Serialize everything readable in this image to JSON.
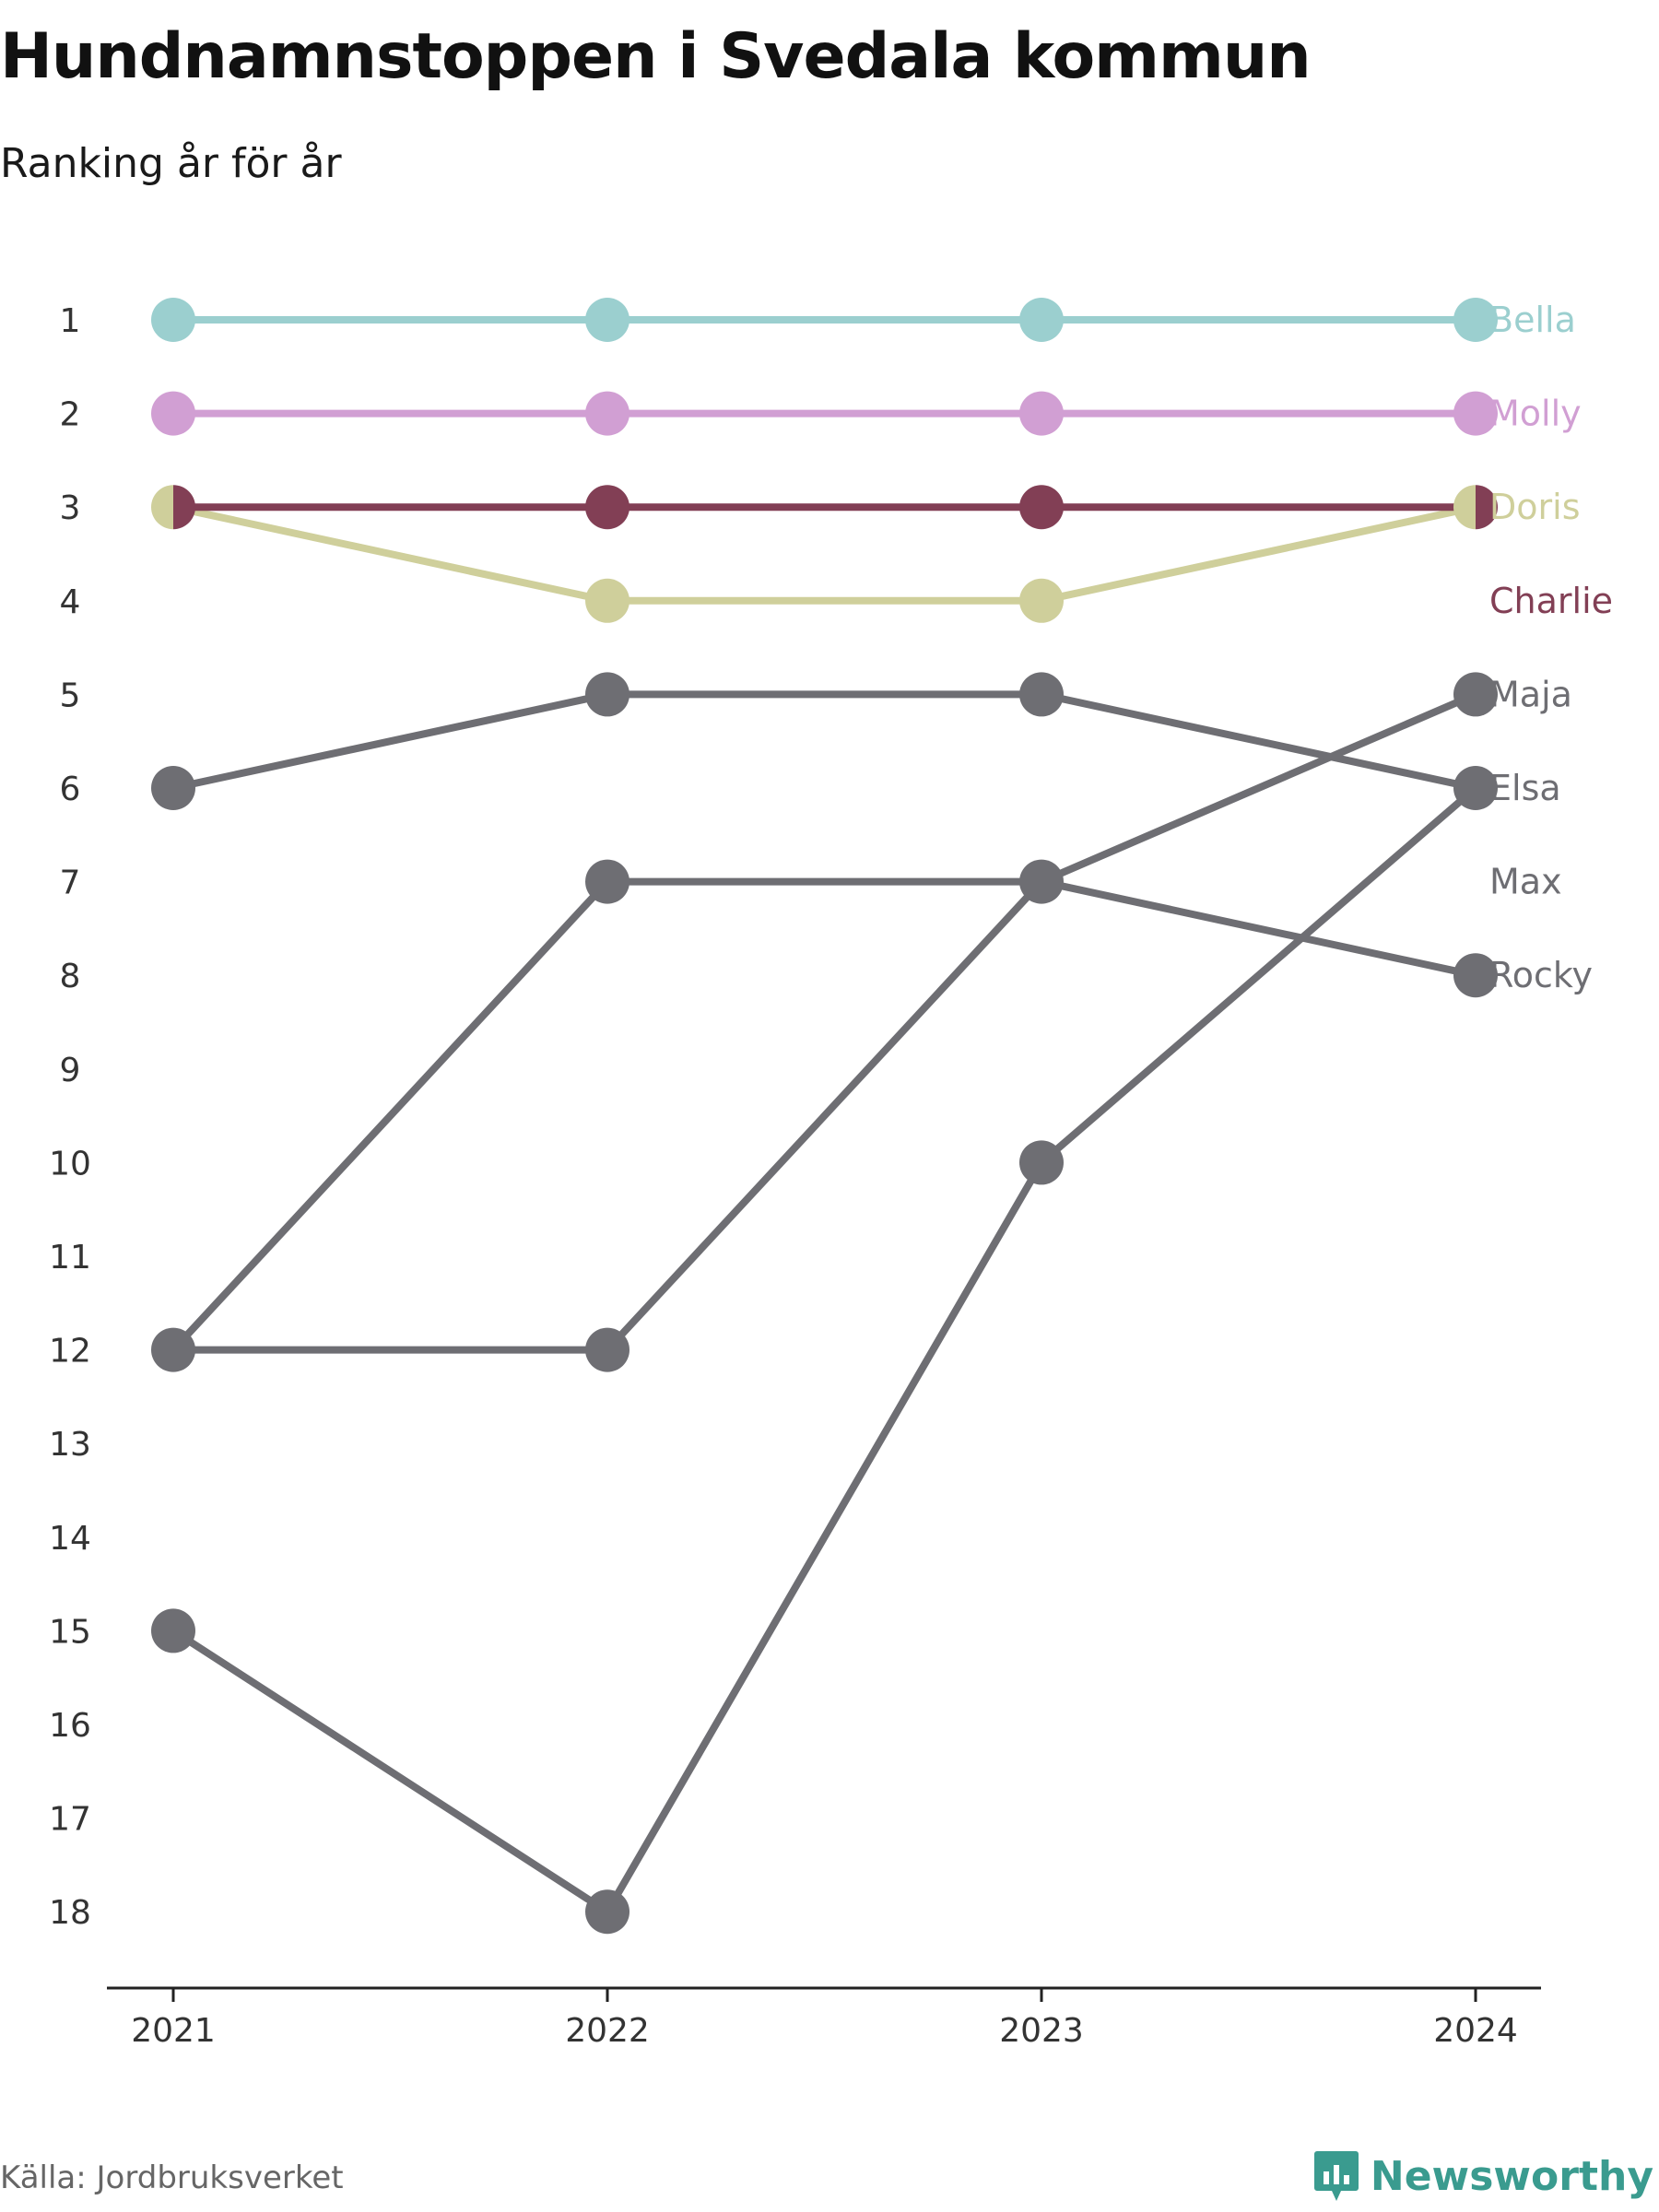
{
  "header": {
    "title": "Hundnamnstoppen i Svedala kommun",
    "subtitle": "Ranking år för år"
  },
  "footer": {
    "source": "Källa: Jordbruksverket",
    "brand": "Newsworthy",
    "brand_icon": "bar-chart-icon",
    "brand_color": "#3a9b8f"
  },
  "chart_data": {
    "type": "line",
    "variant": "bump",
    "x": [
      "2021",
      "2022",
      "2023",
      "2024"
    ],
    "y_ticks": [
      1,
      2,
      3,
      4,
      5,
      6,
      7,
      8,
      9,
      10,
      11,
      12,
      13,
      14,
      15,
      16,
      17,
      18
    ],
    "ylim": [
      1,
      18
    ],
    "y_inverted": true,
    "grid": false,
    "legend": "direct-labels-right",
    "series": [
      {
        "name": "Bella",
        "values": [
          1,
          1,
          1,
          1
        ],
        "color": "#9bcfcf"
      },
      {
        "name": "Molly",
        "values": [
          2,
          2,
          2,
          2
        ],
        "color": "#d19fd3"
      },
      {
        "name": "Doris",
        "values": [
          3,
          4,
          4,
          3
        ],
        "color": "#cfcf9b"
      },
      {
        "name": "Charlie",
        "values": [
          3,
          3,
          3,
          3
        ],
        "color": "#823f55"
      },
      {
        "name": "Maja",
        "values": [
          12,
          7,
          7,
          5
        ],
        "color": "#6e6e73"
      },
      {
        "name": "Elsa",
        "values": [
          6,
          5,
          5,
          6
        ],
        "color": "#6e6e73"
      },
      {
        "name": "Max",
        "values": [
          15,
          18,
          10,
          6
        ],
        "color": "#6e6e73"
      },
      {
        "name": "Rocky",
        "values": [
          12,
          12,
          7,
          8
        ],
        "color": "#6e6e73"
      }
    ]
  }
}
